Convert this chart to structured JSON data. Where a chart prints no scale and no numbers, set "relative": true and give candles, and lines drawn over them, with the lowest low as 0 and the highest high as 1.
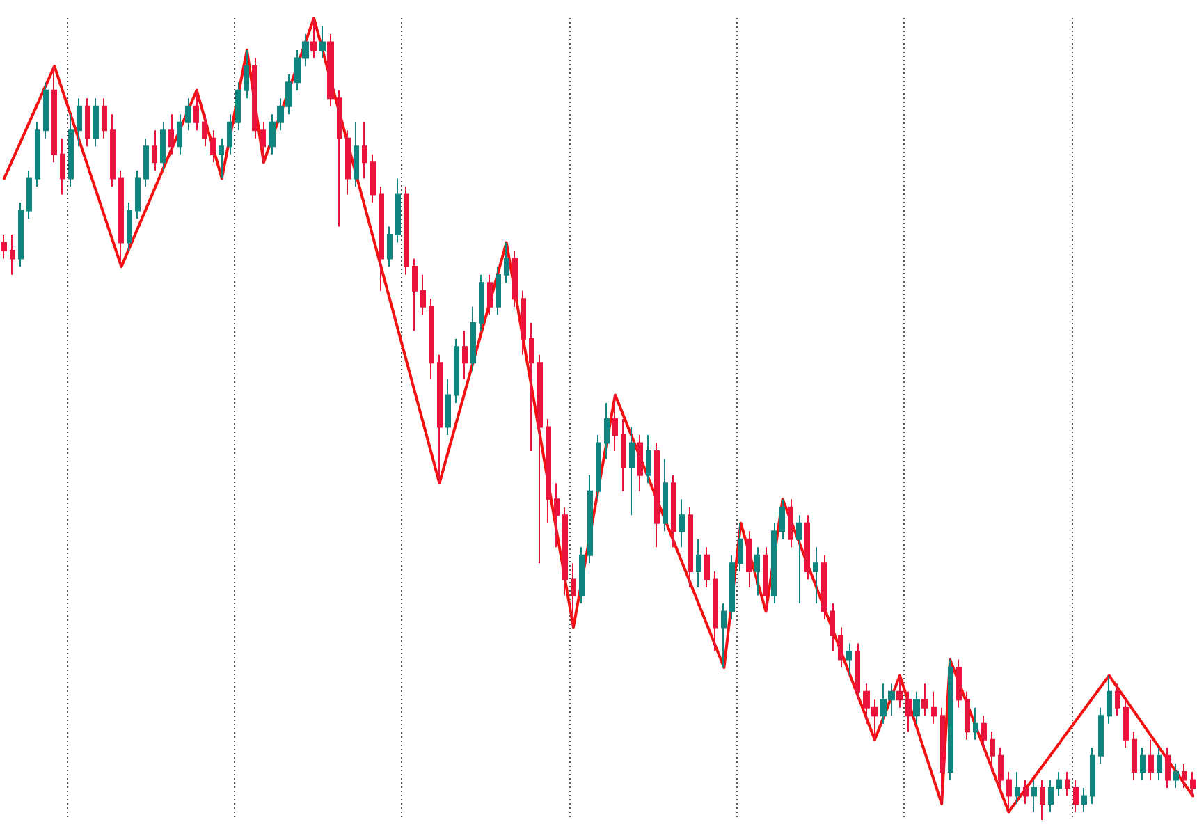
{
  "chart_data": {
    "type": "candlestick",
    "relative": true,
    "categories": [
      null,
      null,
      null,
      null,
      null,
      null,
      null,
      null,
      null,
      null,
      null,
      null,
      null,
      null,
      null,
      null,
      null,
      null,
      null,
      null,
      null,
      null,
      null,
      null,
      null,
      null,
      null,
      null,
      null,
      null,
      null,
      null,
      null,
      null,
      null,
      null,
      null,
      null,
      null,
      null,
      null,
      null,
      null,
      null,
      null,
      null,
      null,
      null,
      null,
      null,
      null,
      null,
      null,
      null,
      null,
      null,
      null,
      null,
      null,
      null,
      null,
      null,
      null,
      null,
      null,
      null,
      null,
      null,
      null,
      null,
      null,
      null,
      null,
      null,
      null,
      null,
      null,
      null,
      null,
      null,
      null,
      null,
      null,
      null,
      null,
      null,
      null,
      null,
      null,
      null,
      null,
      null,
      null,
      null,
      null,
      null,
      null,
      null,
      null,
      null,
      null,
      null,
      null,
      null,
      null,
      null,
      null,
      null,
      null,
      null,
      null,
      null,
      null,
      null,
      null,
      null,
      null,
      null,
      null,
      null,
      null,
      null,
      null,
      null,
      null,
      null,
      null,
      null,
      null,
      null,
      null,
      null,
      null,
      null,
      null,
      null,
      null,
      null,
      null,
      null,
      null,
      null,
      null
    ],
    "series": [
      {
        "type": "candlestick",
        "ohlc": [
          [
            0.72,
            0.73,
            0.7,
            0.71
          ],
          [
            0.71,
            0.73,
            0.68,
            0.7
          ],
          [
            0.7,
            0.77,
            0.69,
            0.76
          ],
          [
            0.76,
            0.81,
            0.75,
            0.8
          ],
          [
            0.8,
            0.87,
            0.79,
            0.86
          ],
          [
            0.86,
            0.92,
            0.85,
            0.91
          ],
          [
            0.91,
            0.94,
            0.82,
            0.83
          ],
          [
            0.83,
            0.85,
            0.78,
            0.8
          ],
          [
            0.8,
            0.88,
            0.79,
            0.86
          ],
          [
            0.86,
            0.9,
            0.84,
            0.89
          ],
          [
            0.89,
            0.9,
            0.84,
            0.85
          ],
          [
            0.85,
            0.9,
            0.84,
            0.89
          ],
          [
            0.89,
            0.9,
            0.85,
            0.86
          ],
          [
            0.86,
            0.88,
            0.79,
            0.8
          ],
          [
            0.8,
            0.81,
            0.69,
            0.72
          ],
          [
            0.72,
            0.77,
            0.71,
            0.76
          ],
          [
            0.76,
            0.81,
            0.75,
            0.8
          ],
          [
            0.8,
            0.85,
            0.79,
            0.84
          ],
          [
            0.84,
            0.86,
            0.81,
            0.82
          ],
          [
            0.82,
            0.87,
            0.81,
            0.86
          ],
          [
            0.86,
            0.88,
            0.83,
            0.84
          ],
          [
            0.84,
            0.88,
            0.83,
            0.87
          ],
          [
            0.87,
            0.9,
            0.86,
            0.89
          ],
          [
            0.89,
            0.91,
            0.86,
            0.87
          ],
          [
            0.87,
            0.88,
            0.84,
            0.85
          ],
          [
            0.85,
            0.86,
            0.82,
            0.83
          ],
          [
            0.83,
            0.85,
            0.8,
            0.84
          ],
          [
            0.84,
            0.88,
            0.83,
            0.87
          ],
          [
            0.87,
            0.92,
            0.86,
            0.91
          ],
          [
            0.91,
            0.96,
            0.9,
            0.94
          ],
          [
            0.94,
            0.95,
            0.85,
            0.86
          ],
          [
            0.86,
            0.87,
            0.82,
            0.84
          ],
          [
            0.84,
            0.88,
            0.83,
            0.87
          ],
          [
            0.87,
            0.9,
            0.86,
            0.89
          ],
          [
            0.89,
            0.93,
            0.88,
            0.92
          ],
          [
            0.92,
            0.96,
            0.91,
            0.95
          ],
          [
            0.95,
            0.98,
            0.94,
            0.97
          ],
          [
            0.97,
            1,
            0.95,
            0.96
          ],
          [
            0.96,
            0.99,
            0.95,
            0.97
          ],
          [
            0.97,
            0.98,
            0.89,
            0.9
          ],
          [
            0.9,
            0.91,
            0.74,
            0.85
          ],
          [
            0.85,
            0.86,
            0.78,
            0.8
          ],
          [
            0.8,
            0.87,
            0.79,
            0.84
          ],
          [
            0.84,
            0.87,
            0.8,
            0.82
          ],
          [
            0.82,
            0.83,
            0.77,
            0.78
          ],
          [
            0.78,
            0.79,
            0.66,
            0.7
          ],
          [
            0.7,
            0.74,
            0.69,
            0.73
          ],
          [
            0.73,
            0.8,
            0.72,
            0.78
          ],
          [
            0.78,
            0.79,
            0.68,
            0.69
          ],
          [
            0.69,
            0.7,
            0.61,
            0.66
          ],
          [
            0.66,
            0.68,
            0.63,
            0.64
          ],
          [
            0.64,
            0.65,
            0.55,
            0.57
          ],
          [
            0.57,
            0.58,
            0.42,
            0.49
          ],
          [
            0.49,
            0.55,
            0.48,
            0.53
          ],
          [
            0.53,
            0.6,
            0.52,
            0.59
          ],
          [
            0.59,
            0.61,
            0.55,
            0.57
          ],
          [
            0.57,
            0.64,
            0.56,
            0.62
          ],
          [
            0.62,
            0.68,
            0.61,
            0.67
          ],
          [
            0.67,
            0.68,
            0.63,
            0.64
          ],
          [
            0.64,
            0.69,
            0.63,
            0.68
          ],
          [
            0.68,
            0.72,
            0.67,
            0.7
          ],
          [
            0.7,
            0.71,
            0.64,
            0.65
          ],
          [
            0.65,
            0.66,
            0.58,
            0.6
          ],
          [
            0.6,
            0.62,
            0.46,
            0.57
          ],
          [
            0.57,
            0.58,
            0.32,
            0.49
          ],
          [
            0.49,
            0.5,
            0.37,
            0.4
          ],
          [
            0.4,
            0.42,
            0.34,
            0.38
          ],
          [
            0.38,
            0.39,
            0.28,
            0.3
          ],
          [
            0.3,
            0.32,
            0.24,
            0.28
          ],
          [
            0.28,
            0.34,
            0.27,
            0.33
          ],
          [
            0.33,
            0.43,
            0.32,
            0.41
          ],
          [
            0.41,
            0.48,
            0.4,
            0.47
          ],
          [
            0.47,
            0.52,
            0.45,
            0.5
          ],
          [
            0.5,
            0.53,
            0.46,
            0.48
          ],
          [
            0.48,
            0.5,
            0.41,
            0.44
          ],
          [
            0.44,
            0.49,
            0.38,
            0.47
          ],
          [
            0.47,
            0.48,
            0.41,
            0.43
          ],
          [
            0.43,
            0.48,
            0.42,
            0.46
          ],
          [
            0.46,
            0.47,
            0.34,
            0.37
          ],
          [
            0.37,
            0.45,
            0.36,
            0.42
          ],
          [
            0.42,
            0.43,
            0.34,
            0.36
          ],
          [
            0.36,
            0.4,
            0.34,
            0.38
          ],
          [
            0.38,
            0.39,
            0.29,
            0.31
          ],
          [
            0.31,
            0.35,
            0.29,
            0.33
          ],
          [
            0.33,
            0.34,
            0.29,
            0.3
          ],
          [
            0.3,
            0.31,
            0.21,
            0.24
          ],
          [
            0.24,
            0.27,
            0.19,
            0.26
          ],
          [
            0.26,
            0.33,
            0.25,
            0.32
          ],
          [
            0.32,
            0.37,
            0.31,
            0.35
          ],
          [
            0.35,
            0.36,
            0.29,
            0.31
          ],
          [
            0.31,
            0.34,
            0.28,
            0.33
          ],
          [
            0.33,
            0.34,
            0.26,
            0.28
          ],
          [
            0.28,
            0.37,
            0.27,
            0.36
          ],
          [
            0.36,
            0.4,
            0.35,
            0.39
          ],
          [
            0.39,
            0.4,
            0.34,
            0.35
          ],
          [
            0.35,
            0.38,
            0.27,
            0.37
          ],
          [
            0.37,
            0.38,
            0.3,
            0.31
          ],
          [
            0.31,
            0.34,
            0.27,
            0.32
          ],
          [
            0.32,
            0.33,
            0.25,
            0.26
          ],
          [
            0.26,
            0.27,
            0.21,
            0.23
          ],
          [
            0.23,
            0.24,
            0.19,
            0.2
          ],
          [
            0.2,
            0.22,
            0.18,
            0.21
          ],
          [
            0.21,
            0.22,
            0.15,
            0.16
          ],
          [
            0.16,
            0.17,
            0.12,
            0.14
          ],
          [
            0.14,
            0.15,
            0.1,
            0.13
          ],
          [
            0.13,
            0.17,
            0.12,
            0.15
          ],
          [
            0.15,
            0.17,
            0.13,
            0.16
          ],
          [
            0.16,
            0.18,
            0.14,
            0.15
          ],
          [
            0.15,
            0.16,
            0.11,
            0.13
          ],
          [
            0.13,
            0.16,
            0.12,
            0.15
          ],
          [
            0.15,
            0.17,
            0.13,
            0.14
          ],
          [
            0.14,
            0.16,
            0.12,
            0.13
          ],
          [
            0.13,
            0.14,
            0.02,
            0.06
          ],
          [
            0.06,
            0.2,
            0.05,
            0.19
          ],
          [
            0.19,
            0.2,
            0.14,
            0.15
          ],
          [
            0.15,
            0.16,
            0.1,
            0.11
          ],
          [
            0.11,
            0.14,
            0.1,
            0.12
          ],
          [
            0.12,
            0.13,
            0.09,
            0.1
          ],
          [
            0.1,
            0.11,
            0.06,
            0.08
          ],
          [
            0.08,
            0.09,
            0.04,
            0.05
          ],
          [
            0.05,
            0.06,
            0.01,
            0.03
          ],
          [
            0.03,
            0.06,
            0.02,
            0.04
          ],
          [
            0.04,
            0.05,
            0.02,
            0.03
          ],
          [
            0.03,
            0.05,
            0.01,
            0.04
          ],
          [
            0.04,
            0.05,
            0,
            0.02
          ],
          [
            0.02,
            0.05,
            0.01,
            0.04
          ],
          [
            0.04,
            0.06,
            0.03,
            0.05
          ],
          [
            0.05,
            0.06,
            0.03,
            0.04
          ],
          [
            0.04,
            0.05,
            0.01,
            0.02
          ],
          [
            0.02,
            0.04,
            0.01,
            0.03
          ],
          [
            0.03,
            0.09,
            0.02,
            0.08
          ],
          [
            0.08,
            0.14,
            0.07,
            0.13
          ],
          [
            0.13,
            0.18,
            0.12,
            0.16
          ],
          [
            0.16,
            0.17,
            0.13,
            0.14
          ],
          [
            0.14,
            0.15,
            0.09,
            0.1
          ],
          [
            0.1,
            0.11,
            0.05,
            0.06
          ],
          [
            0.06,
            0.09,
            0.05,
            0.08
          ],
          [
            0.08,
            0.1,
            0.05,
            0.06
          ],
          [
            0.06,
            0.09,
            0.05,
            0.08
          ],
          [
            0.08,
            0.09,
            0.04,
            0.05
          ],
          [
            0.05,
            0.07,
            0.04,
            0.06
          ],
          [
            0.06,
            0.07,
            0.04,
            0.05
          ],
          [
            0.05,
            0.06,
            0.03,
            0.04
          ]
        ],
        "colors": [
          "#e8143c",
          "#e8143c",
          "#10857f",
          "#10857f",
          "#10857f",
          "#10857f",
          "#e8143c",
          "#e8143c",
          "#10857f",
          "#10857f",
          "#e8143c",
          "#10857f",
          "#e8143c",
          "#e8143c",
          "#e8143c",
          "#10857f",
          "#10857f",
          "#10857f",
          "#e8143c",
          "#10857f",
          "#e8143c",
          "#10857f",
          "#10857f",
          "#e8143c",
          "#e8143c",
          "#e8143c",
          "#10857f",
          "#10857f",
          "#10857f",
          "#10857f",
          "#e8143c",
          "#e8143c",
          "#10857f",
          "#10857f",
          "#10857f",
          "#10857f",
          "#10857f",
          "#e8143c",
          "#10857f",
          "#e8143c",
          "#e8143c",
          "#e8143c",
          "#10857f",
          "#e8143c",
          "#e8143c",
          "#e8143c",
          "#10857f",
          "#10857f",
          "#e8143c",
          "#e8143c",
          "#e8143c",
          "#e8143c",
          "#e8143c",
          "#10857f",
          "#10857f",
          "#e8143c",
          "#10857f",
          "#10857f",
          "#e8143c",
          "#10857f",
          "#10857f",
          "#e8143c",
          "#e8143c",
          "#e8143c",
          "#e8143c",
          "#e8143c",
          "#e8143c",
          "#e8143c",
          "#e8143c",
          "#10857f",
          "#10857f",
          "#10857f",
          "#10857f",
          "#e8143c",
          "#e8143c",
          "#10857f",
          "#e8143c",
          "#10857f",
          "#e8143c",
          "#10857f",
          "#e8143c",
          "#10857f",
          "#e8143c",
          "#10857f",
          "#e8143c",
          "#e8143c",
          "#10857f",
          "#10857f",
          "#10857f",
          "#e8143c",
          "#10857f",
          "#e8143c",
          "#10857f",
          "#10857f",
          "#e8143c",
          "#10857f",
          "#e8143c",
          "#10857f",
          "#e8143c",
          "#e8143c",
          "#e8143c",
          "#10857f",
          "#e8143c",
          "#e8143c",
          "#e8143c",
          "#10857f",
          "#10857f",
          "#e8143c",
          "#e8143c",
          "#10857f",
          "#e8143c",
          "#e8143c",
          "#e8143c",
          "#10857f",
          "#e8143c",
          "#e8143c",
          "#10857f",
          "#e8143c",
          "#e8143c",
          "#e8143c",
          "#e8143c",
          "#10857f",
          "#e8143c",
          "#10857f",
          "#e8143c",
          "#10857f",
          "#10857f",
          "#e8143c",
          "#e8143c",
          "#10857f",
          "#10857f",
          "#10857f",
          "#10857f",
          "#e8143c",
          "#e8143c",
          "#e8143c",
          "#10857f",
          "#e8143c",
          "#10857f",
          "#e8143c",
          "#10857f",
          "#e8143c",
          "#e8143c"
        ]
      },
      {
        "type": "line",
        "color": "#f21010",
        "values": [
          0.8,
          null,
          null,
          null,
          null,
          null,
          0.94,
          null,
          null,
          null,
          null,
          null,
          null,
          null,
          0.69,
          null,
          null,
          null,
          null,
          null,
          null,
          null,
          null,
          0.91,
          null,
          null,
          0.8,
          null,
          null,
          0.96,
          null,
          0.82,
          null,
          null,
          null,
          null,
          null,
          1,
          null,
          null,
          null,
          null,
          null,
          null,
          null,
          null,
          null,
          null,
          null,
          null,
          null,
          null,
          0.42,
          null,
          null,
          null,
          null,
          null,
          null,
          null,
          0.72,
          null,
          null,
          null,
          null,
          null,
          null,
          null,
          0.24,
          null,
          null,
          null,
          null,
          0.53,
          null,
          null,
          null,
          null,
          null,
          null,
          null,
          null,
          null,
          null,
          null,
          null,
          0.19,
          null,
          0.37,
          null,
          null,
          0.26,
          null,
          0.4,
          null,
          null,
          null,
          null,
          null,
          null,
          null,
          null,
          null,
          null,
          0.1,
          null,
          null,
          0.18,
          null,
          null,
          null,
          null,
          0.02,
          0.2,
          null,
          null,
          null,
          null,
          null,
          null,
          0.01,
          null,
          null,
          null,
          null,
          null,
          null,
          null,
          null,
          null,
          null,
          null,
          0.18,
          null,
          null,
          null,
          null,
          null,
          null,
          null,
          null,
          null,
          0.03
        ]
      }
    ]
  }
}
